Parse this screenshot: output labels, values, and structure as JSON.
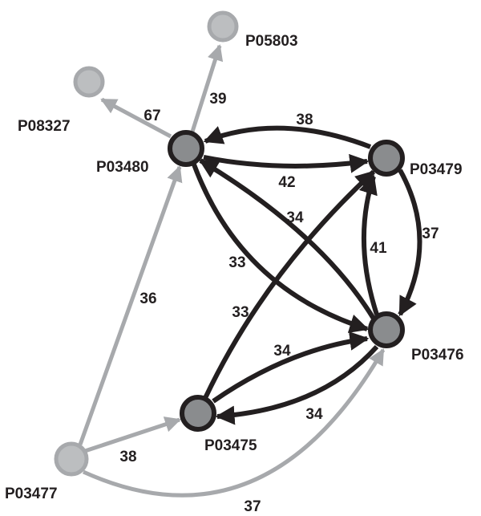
{
  "colors": {
    "dark_edge": "#231f20",
    "gray_edge": "#a7a9ac",
    "dark_node_fill": "#8a8c8e",
    "dark_node_stroke": "#231f20",
    "gray_node_fill": "#bcbec0",
    "gray_node_stroke": "#a7a9ac",
    "label": "#231f20"
  },
  "nodes": [
    {
      "id": "P05803",
      "label": "P05803",
      "style": "gray"
    },
    {
      "id": "P08327",
      "label": "P08327",
      "style": "gray"
    },
    {
      "id": "P03480",
      "label": "P03480",
      "style": "dark"
    },
    {
      "id": "P03479",
      "label": "P03479",
      "style": "dark"
    },
    {
      "id": "P03476",
      "label": "P03476",
      "style": "dark"
    },
    {
      "id": "P03475",
      "label": "P03475",
      "style": "dark"
    },
    {
      "id": "P03477",
      "label": "P03477",
      "style": "gray"
    }
  ],
  "edges": [
    {
      "from": "P03480",
      "to": "P08327",
      "weight": "67",
      "style": "gray"
    },
    {
      "from": "P03480",
      "to": "P05803",
      "weight": "39",
      "style": "gray"
    },
    {
      "from": "P03479",
      "to": "P03480",
      "weight": "38",
      "style": "dark"
    },
    {
      "from": "P03480",
      "to": "P03479",
      "weight": "42",
      "style": "dark"
    },
    {
      "from": "P03476",
      "to": "P03480",
      "weight": "34",
      "style": "dark"
    },
    {
      "from": "P03480",
      "to": "P03476",
      "weight": "33",
      "style": "dark"
    },
    {
      "from": "P03479",
      "to": "P03476",
      "weight": "37",
      "style": "dark"
    },
    {
      "from": "P03476",
      "to": "P03479",
      "weight": "41",
      "style": "dark"
    },
    {
      "from": "P03475",
      "to": "P03479",
      "weight": "33",
      "style": "dark"
    },
    {
      "from": "P03475",
      "to": "P03476",
      "weight": "34",
      "style": "dark"
    },
    {
      "from": "P03476",
      "to": "P03475",
      "weight": "34",
      "style": "dark"
    },
    {
      "from": "P03477",
      "to": "P03480",
      "weight": "36",
      "style": "gray"
    },
    {
      "from": "P03477",
      "to": "P03475",
      "weight": "38",
      "style": "gray"
    },
    {
      "from": "P03477",
      "to": "P03476",
      "weight": "37",
      "style": "gray"
    }
  ]
}
